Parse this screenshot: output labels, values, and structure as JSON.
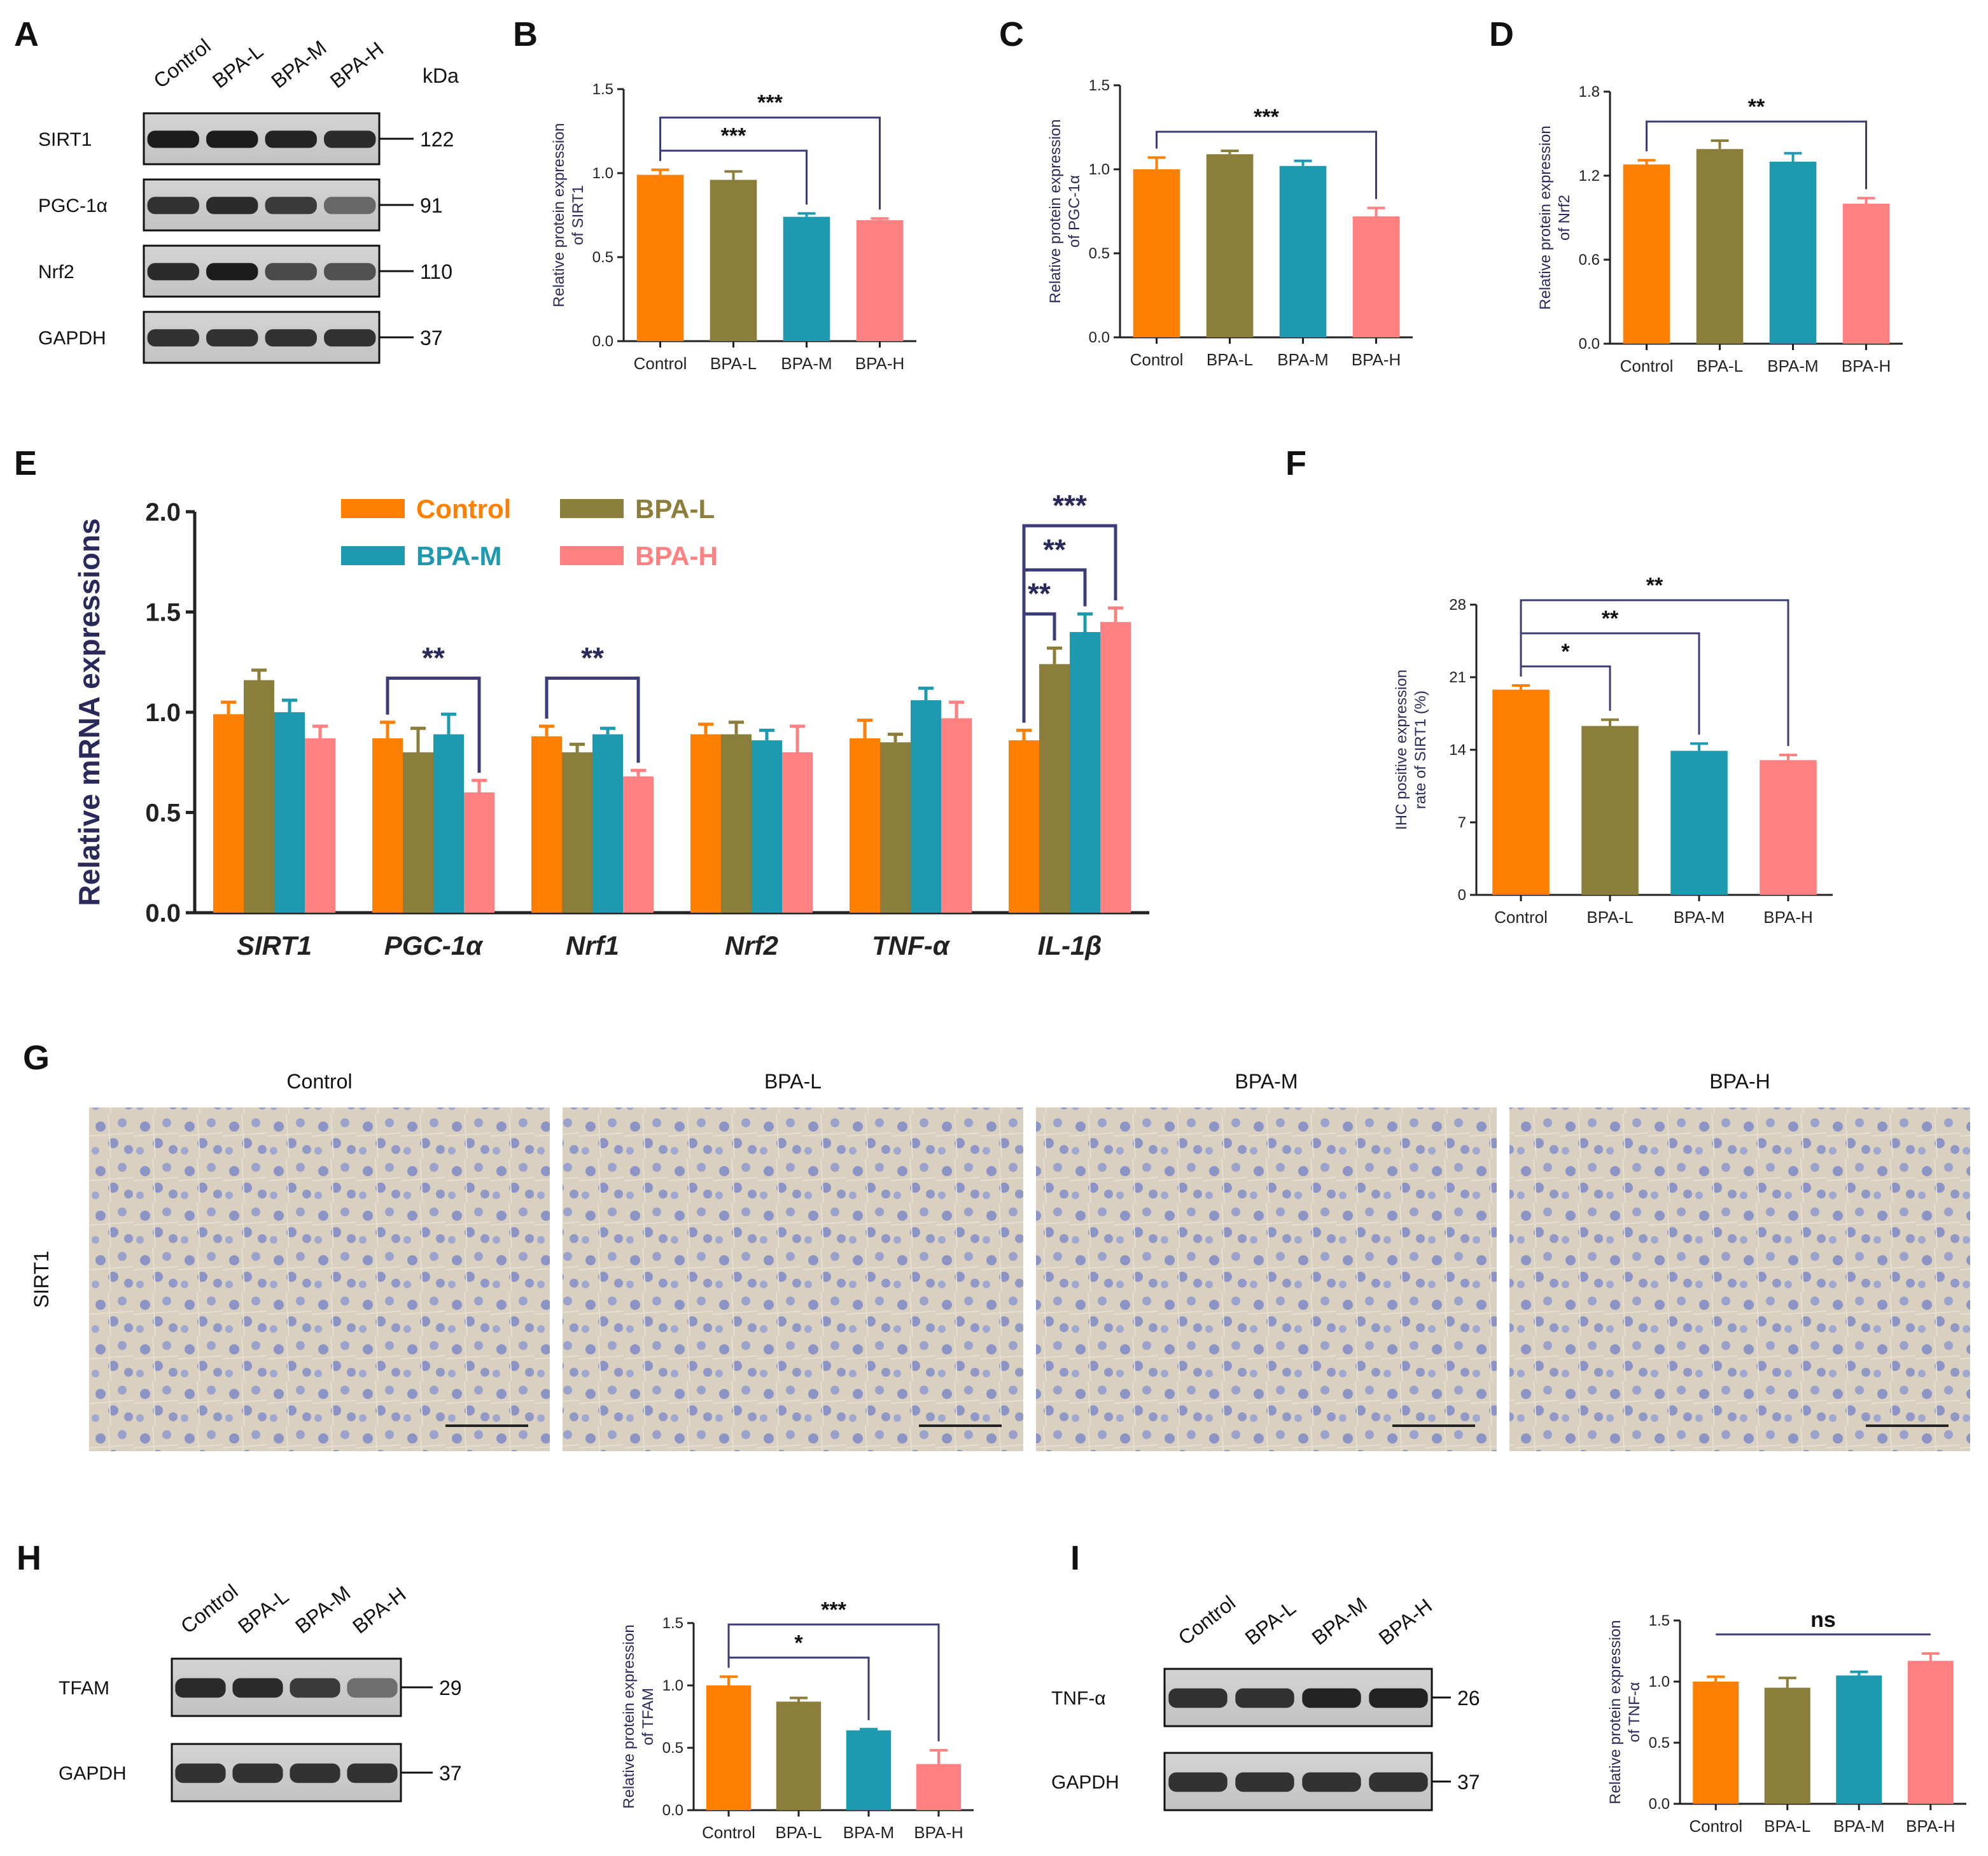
{
  "colors": {
    "control": "#FF7F00",
    "bpa_l": "#8B7D3A",
    "bpa_m": "#1E9AB0",
    "bpa_h": "#FF8080",
    "bracket": "#3C3C7A",
    "axis": "#222222"
  },
  "groups": [
    "Control",
    "BPA-L",
    "BPA-M",
    "BPA-H"
  ],
  "panel_labels": [
    "A",
    "B",
    "C",
    "D",
    "E",
    "F",
    "G",
    "H",
    "I"
  ],
  "blot_A": {
    "lanes": [
      "Control",
      "BPA-L",
      "BPA-M",
      "BPA-H"
    ],
    "kda_label": "kDa",
    "bands": [
      {
        "label": "SIRT1",
        "kda": "122",
        "intensity": [
          0.95,
          0.95,
          0.9,
          0.85
        ]
      },
      {
        "label": "PGC-1α",
        "kda": "91",
        "intensity": [
          0.8,
          0.85,
          0.75,
          0.45
        ]
      },
      {
        "label": "Nrf2",
        "kda": "110",
        "intensity": [
          0.85,
          0.95,
          0.65,
          0.6
        ]
      },
      {
        "label": "GAPDH",
        "kda": "37",
        "intensity": [
          0.8,
          0.8,
          0.8,
          0.8
        ]
      }
    ]
  },
  "blot_H": {
    "lanes": [
      "Control",
      "BPA-L",
      "BPA-M",
      "BPA-H"
    ],
    "bands": [
      {
        "label": "TFAM",
        "kda": "29",
        "intensity": [
          0.85,
          0.85,
          0.75,
          0.4
        ]
      },
      {
        "label": "GAPDH",
        "kda": "37",
        "intensity": [
          0.8,
          0.8,
          0.8,
          0.8
        ]
      }
    ]
  },
  "blot_I": {
    "lanes": [
      "Control",
      "BPA-L",
      "BPA-M",
      "BPA-H"
    ],
    "bands": [
      {
        "label": "TNF-α",
        "kda": "26",
        "intensity": [
          0.8,
          0.8,
          0.9,
          0.9
        ]
      },
      {
        "label": "GAPDH",
        "kda": "37",
        "intensity": [
          0.8,
          0.8,
          0.8,
          0.8
        ]
      }
    ]
  },
  "ihc": {
    "row_label": "SIRT1",
    "titles": [
      "Control",
      "BPA-L",
      "BPA-M",
      "BPA-H"
    ]
  },
  "chart_data": [
    {
      "id": "B",
      "type": "bar",
      "categories": [
        "Control",
        "BPA-L",
        "BPA-M",
        "BPA-H"
      ],
      "values": [
        0.99,
        0.96,
        0.74,
        0.72
      ],
      "errors": [
        0.03,
        0.05,
        0.02,
        0.01
      ],
      "ylabel": "Relative protein expression of SIRT1",
      "ylim": [
        0,
        1.5
      ],
      "yticks": [
        "0.0",
        "0.5",
        "1.0",
        "1.5"
      ],
      "sig": [
        {
          "from": 0,
          "to": 2,
          "label": "***"
        },
        {
          "from": 0,
          "to": 3,
          "label": "***"
        }
      ]
    },
    {
      "id": "C",
      "type": "bar",
      "categories": [
        "Control",
        "BPA-L",
        "BPA-M",
        "BPA-H"
      ],
      "values": [
        1.0,
        1.09,
        1.02,
        0.72
      ],
      "errors": [
        0.07,
        0.02,
        0.03,
        0.05
      ],
      "ylabel": "Relative protein expression of PGC-1α",
      "ylim": [
        0,
        1.5
      ],
      "yticks": [
        "0.0",
        "0.5",
        "1.0",
        "1.5"
      ],
      "sig": [
        {
          "from": 0,
          "to": 3,
          "label": "***"
        }
      ]
    },
    {
      "id": "D",
      "type": "bar",
      "categories": [
        "Control",
        "BPA-L",
        "BPA-M",
        "BPA-H"
      ],
      "values": [
        1.28,
        1.39,
        1.3,
        1.0
      ],
      "errors": [
        0.03,
        0.06,
        0.06,
        0.04
      ],
      "ylabel": "Relative protein expression of Nrf2",
      "ylim": [
        0,
        1.8
      ],
      "yticks": [
        "0.0",
        "0.6",
        "1.2",
        "1.8"
      ],
      "sig": [
        {
          "from": 0,
          "to": 3,
          "label": "**"
        }
      ]
    },
    {
      "id": "E",
      "type": "bar",
      "categories": [
        "SIRT1",
        "PGC-1α",
        "Nrf1",
        "Nrf2",
        "TNF-α",
        "IL-1β"
      ],
      "ylabel": "Relative mRNA expressions",
      "ylim": [
        0,
        2.0
      ],
      "yticks": [
        "0.0",
        "0.5",
        "1.0",
        "1.5",
        "2.0"
      ],
      "series": [
        {
          "name": "Control",
          "values": [
            0.99,
            0.87,
            0.88,
            0.89,
            0.87,
            0.86
          ],
          "errors": [
            0.06,
            0.08,
            0.05,
            0.05,
            0.09,
            0.05
          ]
        },
        {
          "name": "BPA-L",
          "values": [
            1.16,
            0.8,
            0.8,
            0.89,
            0.85,
            1.24
          ],
          "errors": [
            0.05,
            0.12,
            0.04,
            0.06,
            0.04,
            0.08
          ]
        },
        {
          "name": "BPA-M",
          "values": [
            1.0,
            0.89,
            0.89,
            0.86,
            1.06,
            1.4
          ],
          "errors": [
            0.06,
            0.1,
            0.03,
            0.05,
            0.06,
            0.09
          ]
        },
        {
          "name": "BPA-H",
          "values": [
            0.87,
            0.6,
            0.68,
            0.8,
            0.97,
            1.45
          ],
          "errors": [
            0.06,
            0.06,
            0.03,
            0.13,
            0.08,
            0.07
          ]
        }
      ],
      "sig": [
        {
          "cat": 1,
          "label": "**"
        },
        {
          "cat": 2,
          "label": "**"
        },
        {
          "cat": 5,
          "labels": [
            "**",
            "**",
            "***"
          ]
        }
      ]
    },
    {
      "id": "F",
      "type": "bar",
      "categories": [
        "Control",
        "BPA-L",
        "BPA-M",
        "BPA-H"
      ],
      "values": [
        19.8,
        16.3,
        13.9,
        13.0
      ],
      "errors": [
        0.4,
        0.6,
        0.7,
        0.5
      ],
      "ylabel": "IHC positive expression rate of SIRT1 (%)",
      "ylim": [
        0,
        28
      ],
      "yticks": [
        "0",
        "7",
        "14",
        "21",
        "28"
      ],
      "sig": [
        {
          "from": 0,
          "to": 1,
          "label": "*"
        },
        {
          "from": 0,
          "to": 2,
          "label": "**"
        },
        {
          "from": 0,
          "to": 3,
          "label": "**"
        }
      ]
    },
    {
      "id": "H",
      "type": "bar",
      "categories": [
        "Control",
        "BPA-L",
        "BPA-M",
        "BPA-H"
      ],
      "values": [
        1.0,
        0.87,
        0.64,
        0.37
      ],
      "errors": [
        0.07,
        0.03,
        0.01,
        0.11
      ],
      "ylabel": "Relative protein expression of TFAM",
      "ylim": [
        0,
        1.5
      ],
      "yticks": [
        "0.0",
        "0.5",
        "1.0",
        "1.5"
      ],
      "sig": [
        {
          "from": 0,
          "to": 2,
          "label": "*"
        },
        {
          "from": 0,
          "to": 3,
          "label": "***"
        }
      ]
    },
    {
      "id": "I",
      "type": "bar",
      "categories": [
        "Control",
        "BPA-L",
        "BPA-M",
        "BPA-H"
      ],
      "values": [
        1.0,
        0.95,
        1.05,
        1.17
      ],
      "errors": [
        0.04,
        0.08,
        0.03,
        0.06
      ],
      "ylabel": "Relative protein expression of TNF-α",
      "ylim": [
        0,
        1.5
      ],
      "yticks": [
        "0.0",
        "0.5",
        "1.0",
        "1.5"
      ],
      "sig": [
        {
          "from": 0,
          "to": 3,
          "label": "ns",
          "line_only": true
        }
      ]
    }
  ]
}
